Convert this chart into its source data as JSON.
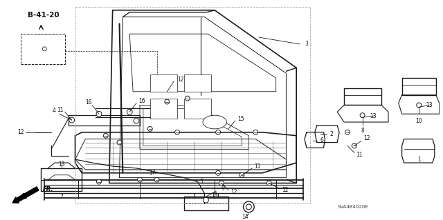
{
  "bg_color": "#ffffff",
  "fig_width": 6.4,
  "fig_height": 3.19,
  "dpi": 100,
  "title_ref": "B-41-20",
  "diagram_code": "SVA4B4020E",
  "line_color": "#1a1a1a",
  "text_color": "#111111",
  "label_fontsize": 5.5,
  "ref_fontsize": 7.5,
  "code_fontsize": 5.0
}
